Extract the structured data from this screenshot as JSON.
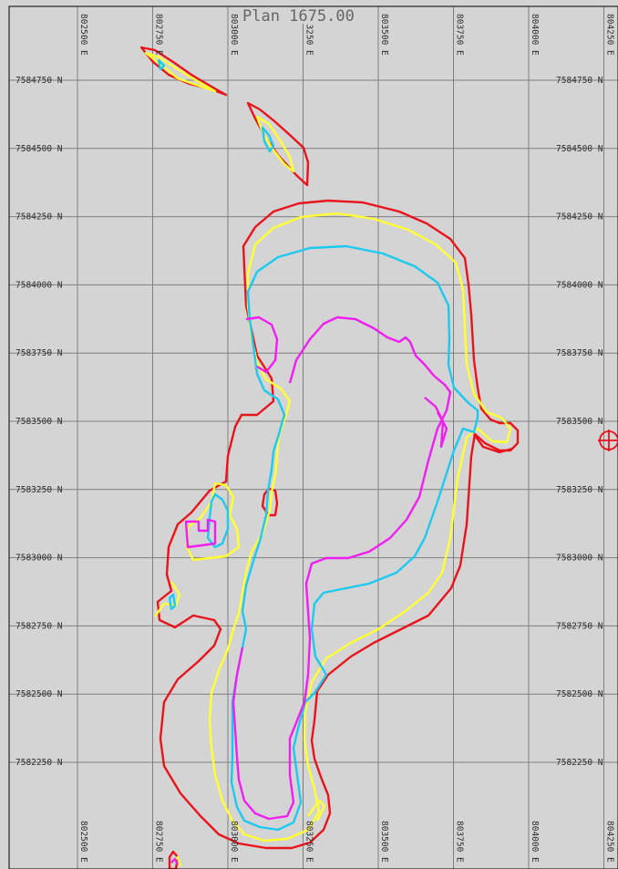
{
  "title": "Plan 1675.00",
  "colors": {
    "background": "#d4d4d4",
    "grid": "#7f7f7f",
    "frame": "#000000",
    "red": "#e8141b",
    "yellow": "#ffff33",
    "cyan": "#1ec9f0",
    "magenta": "#f01ef0"
  },
  "easting_labels": [
    {
      "label": "802500 E",
      "easting": 802500
    },
    {
      "label": "802750 E",
      "easting": 802750
    },
    {
      "label": "803000 E",
      "easting": 803000
    },
    {
      "label": "803250 E",
      "easting": 803250
    },
    {
      "label": "803500 E",
      "easting": 803500
    },
    {
      "label": "803750 E",
      "easting": 803750
    },
    {
      "label": "804000 E",
      "easting": 804000
    },
    {
      "label": "804250 E",
      "easting": 804250
    }
  ],
  "northing_labels": [
    {
      "label": "7584750 N",
      "northing": 7584750
    },
    {
      "label": "7584500 N",
      "northing": 7584500
    },
    {
      "label": "7584250 N",
      "northing": 7584250
    },
    {
      "label": "7584000 N",
      "northing": 7584000
    },
    {
      "label": "7583750 N",
      "northing": 7583750
    },
    {
      "label": "7583500 N",
      "northing": 7583500
    },
    {
      "label": "7583250 N",
      "northing": 7583250
    },
    {
      "label": "7583000 N",
      "northing": 7583000
    },
    {
      "label": "7582750 N",
      "northing": 7582750
    },
    {
      "label": "7582500 N",
      "northing": 7582500
    },
    {
      "label": "7582250 N",
      "northing": 7582250
    }
  ],
  "marker_icon": "target-crosshair-icon"
}
